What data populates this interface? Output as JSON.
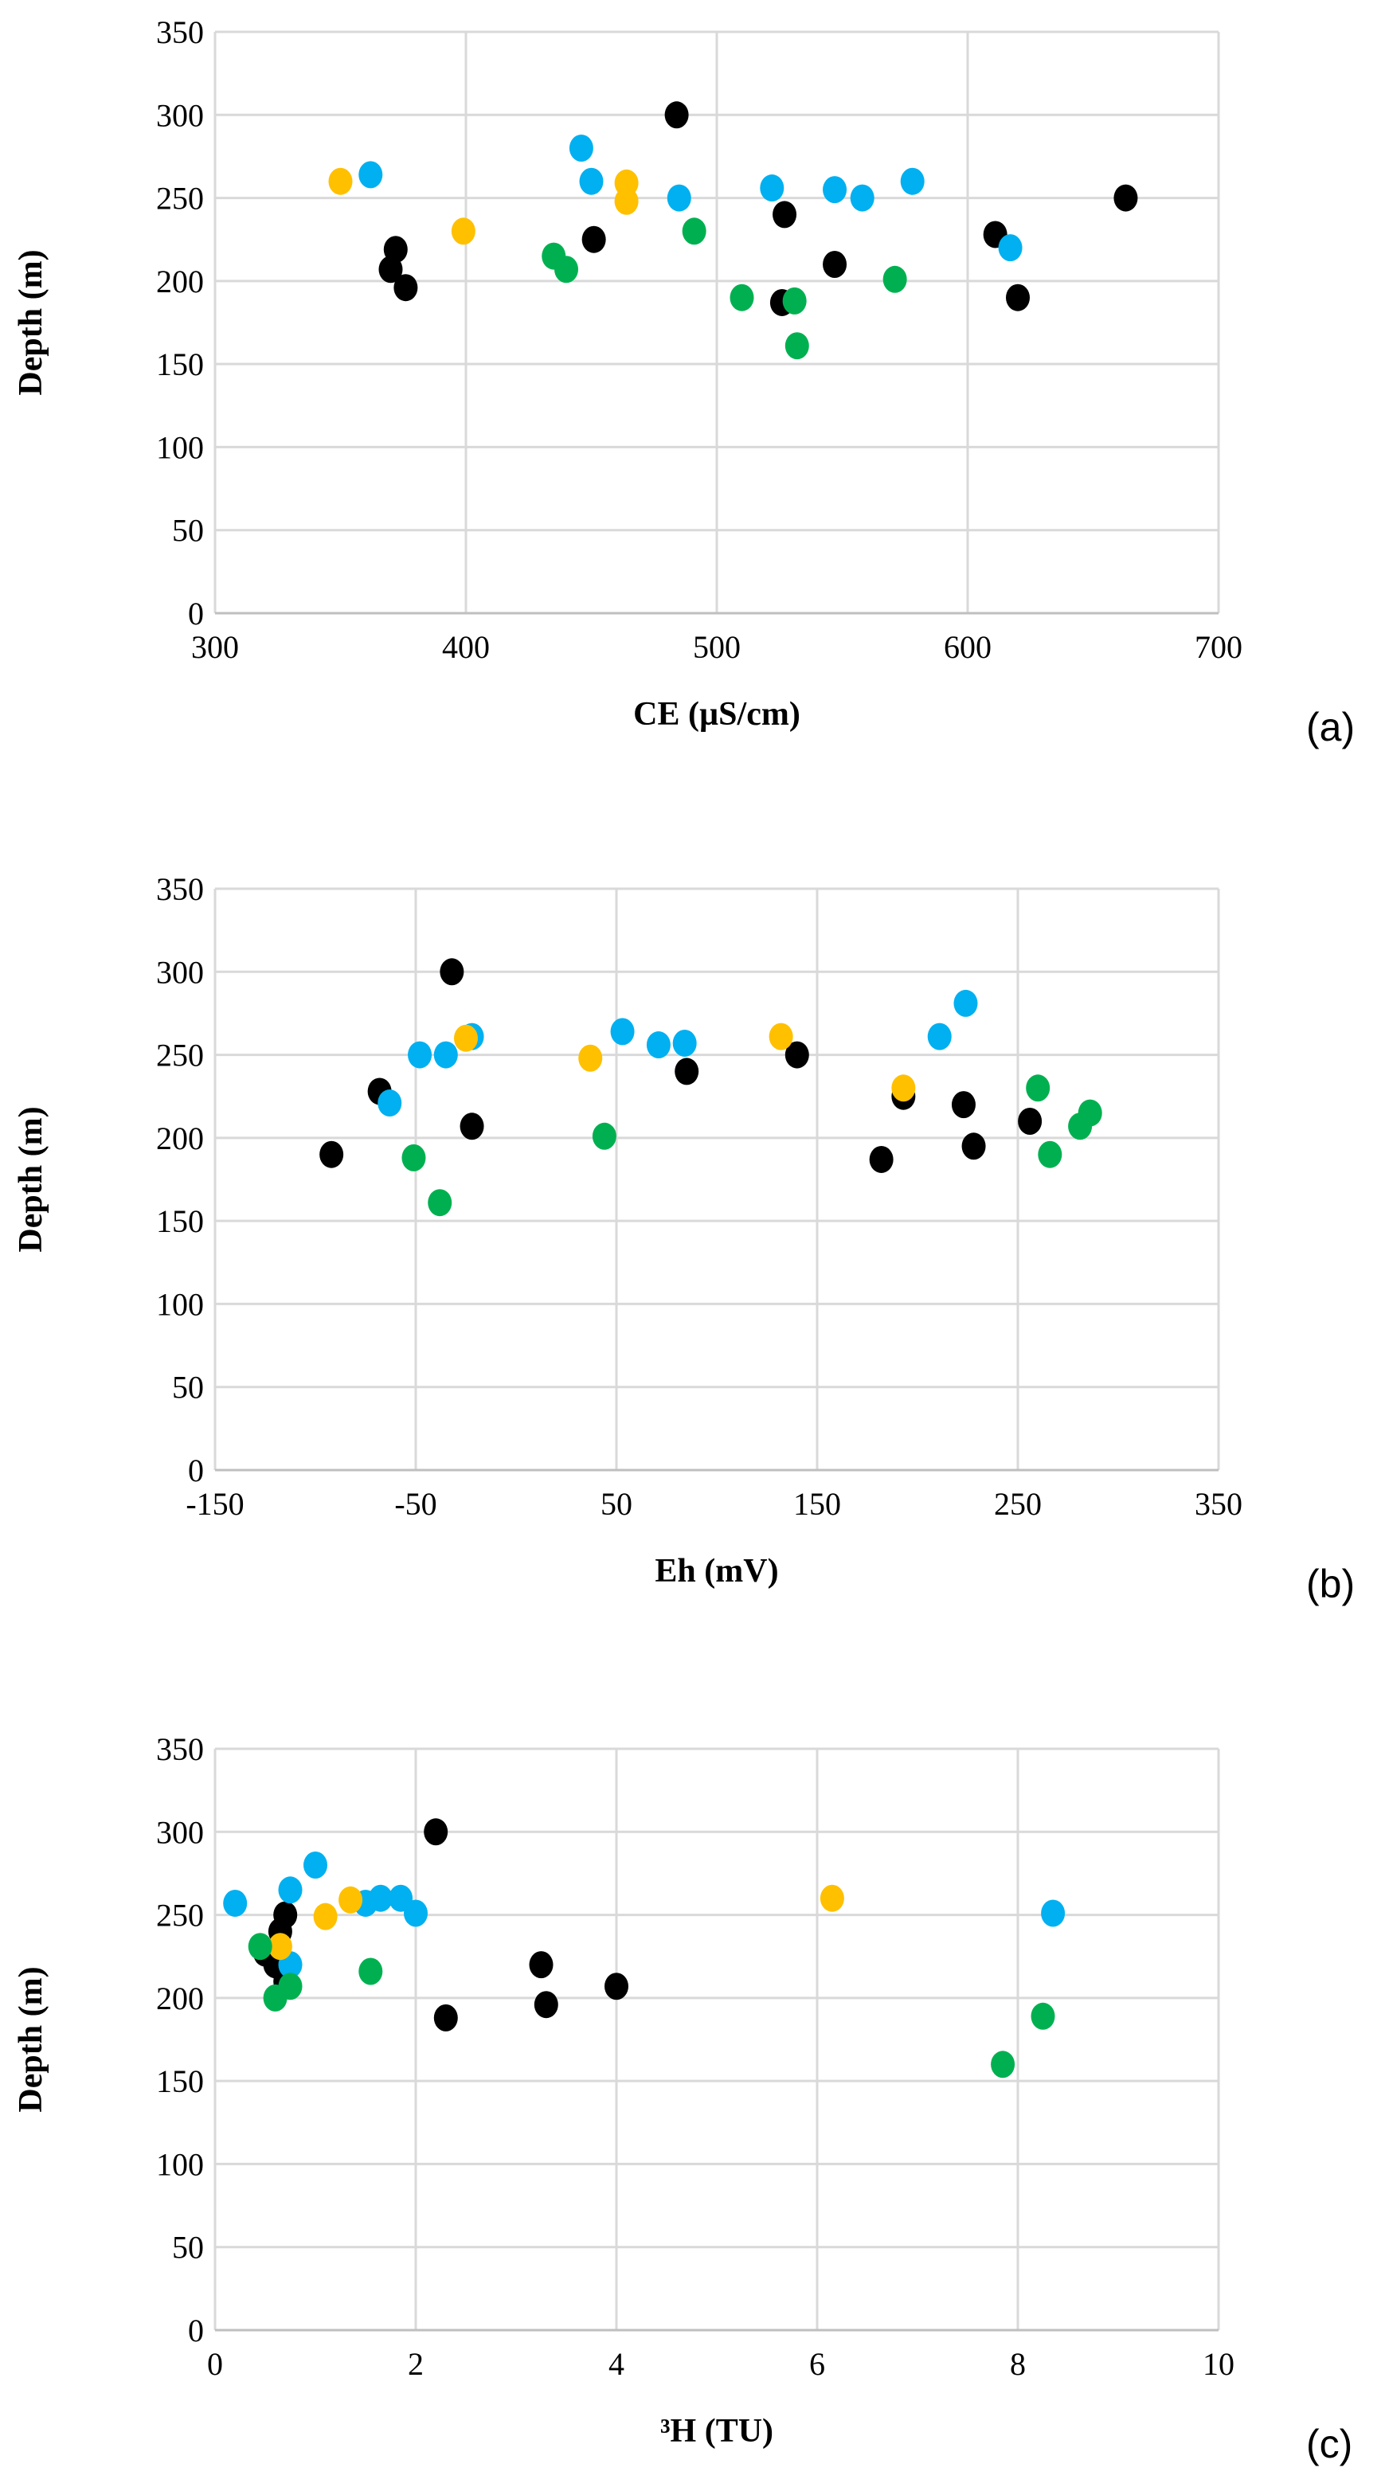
{
  "colors": {
    "black": "#000000",
    "blue": "#00B0F0",
    "yellow": "#FFC000",
    "green": "#00B050",
    "grid": "#d9d9d9"
  },
  "chart_data": [
    {
      "type": "scatter",
      "panel_label": "(a)",
      "xlabel": "CE (µS/cm)",
      "ylabel": "Depth (m)",
      "xlim": [
        300,
        700
      ],
      "ylim": [
        0,
        350
      ],
      "xticks": [
        300,
        400,
        500,
        600,
        700
      ],
      "yticks": [
        0,
        50,
        100,
        150,
        200,
        250,
        300,
        350
      ],
      "grid": true,
      "series": [
        {
          "color": "black",
          "points": [
            [
              484,
              300
            ],
            [
              372,
              219
            ],
            [
              370,
              207
            ],
            [
              376,
              196
            ],
            [
              451,
              225
            ],
            [
              527,
              240
            ],
            [
              526,
              187
            ],
            [
              547,
              210
            ],
            [
              611,
              228
            ],
            [
              620,
              190
            ],
            [
              663,
              250
            ]
          ]
        },
        {
          "color": "blue",
          "points": [
            [
              362,
              264
            ],
            [
              446,
              280
            ],
            [
              450,
              260
            ],
            [
              485,
              250
            ],
            [
              522,
              256
            ],
            [
              547,
              255
            ],
            [
              558,
              250
            ],
            [
              578,
              260
            ],
            [
              617,
              220
            ]
          ]
        },
        {
          "color": "yellow",
          "points": [
            [
              350,
              260
            ],
            [
              399,
              230
            ],
            [
              464,
              259
            ],
            [
              464,
              248
            ]
          ]
        },
        {
          "color": "green",
          "points": [
            [
              435,
              215
            ],
            [
              440,
              207
            ],
            [
              491,
              230
            ],
            [
              510,
              190
            ],
            [
              531,
              188
            ],
            [
              532,
              161
            ],
            [
              571,
              201
            ]
          ]
        }
      ]
    },
    {
      "type": "scatter",
      "panel_label": "(b)",
      "xlabel": "Eh (mV)",
      "ylabel": "Depth (m)",
      "xlim": [
        -150,
        350
      ],
      "ylim": [
        0,
        350
      ],
      "xticks": [
        -150,
        -50,
        50,
        150,
        250,
        350
      ],
      "yticks": [
        0,
        50,
        100,
        150,
        200,
        250,
        300,
        350
      ],
      "grid": true,
      "series": [
        {
          "color": "black",
          "points": [
            [
              -92,
              190
            ],
            [
              -68,
              228
            ],
            [
              -32,
              300
            ],
            [
              -22,
              207
            ],
            [
              85,
              240
            ],
            [
              140,
              250
            ],
            [
              182,
              187
            ],
            [
              193,
              225
            ],
            [
              223,
              220
            ],
            [
              228,
              195
            ],
            [
              256,
              210
            ]
          ]
        },
        {
          "color": "blue",
          "points": [
            [
              -63,
              221
            ],
            [
              -48,
              250
            ],
            [
              -35,
              250
            ],
            [
              -22,
              261
            ],
            [
              53,
              264
            ],
            [
              71,
              256
            ],
            [
              84,
              257
            ],
            [
              211,
              261
            ],
            [
              224,
              281
            ]
          ]
        },
        {
          "color": "yellow",
          "points": [
            [
              -25,
              260
            ],
            [
              37,
              248
            ],
            [
              132,
              261
            ],
            [
              193,
              230
            ]
          ]
        },
        {
          "color": "green",
          "points": [
            [
              -51,
              188
            ],
            [
              -38,
              161
            ],
            [
              44,
              201
            ],
            [
              260,
              230
            ],
            [
              266,
              190
            ],
            [
              281,
              207
            ],
            [
              286,
              215
            ]
          ]
        }
      ]
    },
    {
      "type": "scatter",
      "panel_label": "(c)",
      "xlabel": "³H (TU)",
      "ylabel": "Depth (m)",
      "xlim": [
        0,
        10
      ],
      "ylim": [
        0,
        350
      ],
      "xticks": [
        0,
        2,
        4,
        6,
        8,
        10
      ],
      "yticks": [
        0,
        50,
        100,
        150,
        200,
        250,
        300,
        350
      ],
      "grid": true,
      "series": [
        {
          "color": "black",
          "points": [
            [
              2.2,
              300
            ],
            [
              0.7,
              250
            ],
            [
              0.65,
              240
            ],
            [
              0.5,
              227
            ],
            [
              0.7,
              210
            ],
            [
              0.6,
              220
            ],
            [
              2.3,
              188
            ],
            [
              3.25,
              220
            ],
            [
              3.3,
              196
            ],
            [
              4.0,
              207
            ]
          ]
        },
        {
          "color": "blue",
          "points": [
            [
              0.2,
              257
            ],
            [
              0.75,
              265
            ],
            [
              1.0,
              280
            ],
            [
              1.5,
              257
            ],
            [
              1.65,
              260
            ],
            [
              1.85,
              260
            ],
            [
              2.0,
              251
            ],
            [
              0.75,
              220
            ],
            [
              8.35,
              251
            ]
          ]
        },
        {
          "color": "yellow",
          "points": [
            [
              0.65,
              231
            ],
            [
              1.1,
              249
            ],
            [
              1.35,
              259
            ],
            [
              6.15,
              260
            ]
          ]
        },
        {
          "color": "green",
          "points": [
            [
              0.45,
              231
            ],
            [
              0.6,
              200
            ],
            [
              0.75,
              207
            ],
            [
              1.55,
              216
            ],
            [
              7.85,
              160
            ],
            [
              8.25,
              189
            ]
          ]
        }
      ]
    }
  ]
}
